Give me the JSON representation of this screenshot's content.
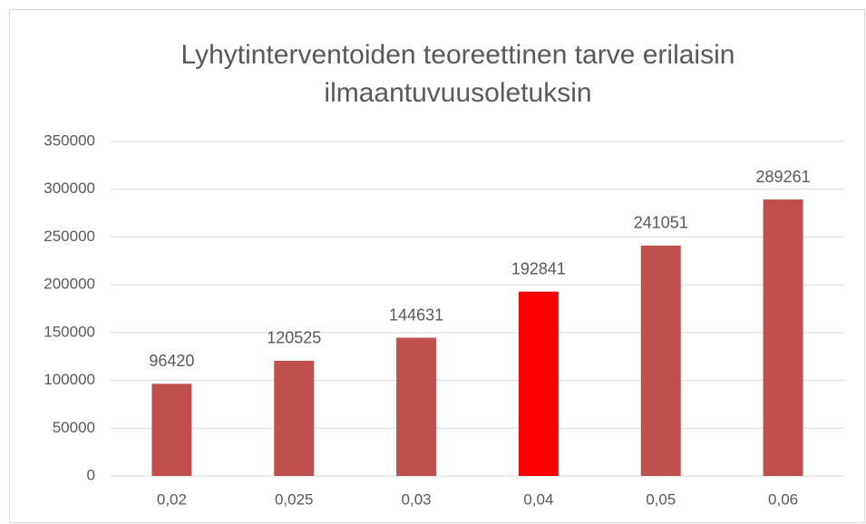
{
  "chart_data": {
    "type": "bar",
    "title": [
      "Lyhytinterventoiden teoreettinen tarve erilaisin",
      "ilmaantuvuusoletuksin"
    ],
    "categories": [
      "0,02",
      "0,025",
      "0,03",
      "0,04",
      "0,05",
      "0,06"
    ],
    "values": [
      96420,
      120525,
      144631,
      192841,
      241051,
      289261
    ],
    "colors": [
      "#c0504d",
      "#c0504d",
      "#c0504d",
      "#ff0000",
      "#c0504d",
      "#c0504d"
    ],
    "ylim": [
      0,
      350000
    ],
    "yticks": [
      0,
      50000,
      100000,
      150000,
      200000,
      250000,
      300000,
      350000
    ],
    "grid": true
  }
}
